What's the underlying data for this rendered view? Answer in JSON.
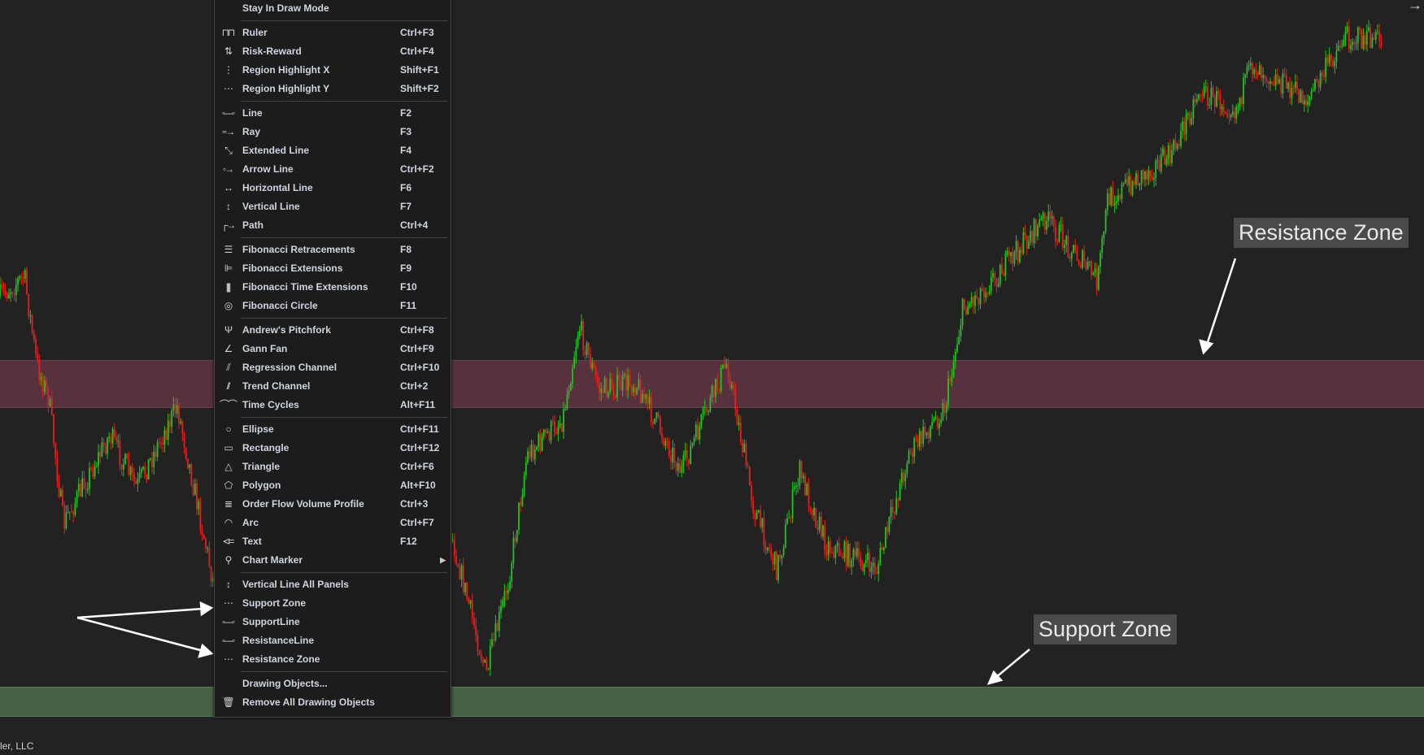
{
  "chart": {
    "up_color": "#22c322",
    "down_color": "#e81e1e",
    "resistance_band_color": "#58313f",
    "support_band_color": "#446146"
  },
  "annotations": {
    "resistance_label": "Resistance Zone",
    "support_label": "Support Zone"
  },
  "status_text": "ler, LLC",
  "corner_icon": "arrow-right-icon",
  "menu": {
    "groups": [
      [
        {
          "label": "Stay In Draw Mode",
          "shortcut": "",
          "icon": ""
        }
      ],
      [
        {
          "label": "Ruler",
          "shortcut": "Ctrl+F3",
          "icon": "ruler-icon",
          "glyph": "⊓⊓"
        },
        {
          "label": "Risk-Reward",
          "shortcut": "Ctrl+F4",
          "icon": "risk-reward-icon",
          "glyph": "⇅"
        },
        {
          "label": "Region Highlight X",
          "shortcut": "Shift+F1",
          "icon": "region-x-icon",
          "glyph": "⋮"
        },
        {
          "label": "Region Highlight Y",
          "shortcut": "Shift+F2",
          "icon": "region-y-icon",
          "glyph": "⋯"
        }
      ],
      [
        {
          "label": "Line",
          "shortcut": "F2",
          "icon": "line-icon",
          "glyph": "◦—◦"
        },
        {
          "label": "Ray",
          "shortcut": "F3",
          "icon": "ray-icon",
          "glyph": "◦◦→"
        },
        {
          "label": "Extended Line",
          "shortcut": "F4",
          "icon": "extended-line-icon",
          "glyph": "⤡"
        },
        {
          "label": "Arrow Line",
          "shortcut": "Ctrl+F2",
          "icon": "arrow-line-icon",
          "glyph": "◦→"
        },
        {
          "label": "Horizontal Line",
          "shortcut": "F6",
          "icon": "horizontal-line-icon",
          "glyph": "↔"
        },
        {
          "label": "Vertical Line",
          "shortcut": "F7",
          "icon": "vertical-line-icon",
          "glyph": "↕"
        },
        {
          "label": "Path",
          "shortcut": "Ctrl+4",
          "icon": "path-icon",
          "glyph": "┌→"
        }
      ],
      [
        {
          "label": "Fibonacci Retracements",
          "shortcut": "F8",
          "icon": "fib-retracement-icon",
          "glyph": "☰"
        },
        {
          "label": "Fibonacci Extensions",
          "shortcut": "F9",
          "icon": "fib-extension-icon",
          "glyph": "⊫"
        },
        {
          "label": "Fibonacci Time Extensions",
          "shortcut": "F10",
          "icon": "fib-time-icon",
          "glyph": "||||"
        },
        {
          "label": "Fibonacci Circle",
          "shortcut": "F11",
          "icon": "fib-circle-icon",
          "glyph": "◎"
        }
      ],
      [
        {
          "label": "Andrew's Pitchfork",
          "shortcut": "Ctrl+F8",
          "icon": "pitchfork-icon",
          "glyph": "Ψ"
        },
        {
          "label": "Gann Fan",
          "shortcut": "Ctrl+F9",
          "icon": "gann-fan-icon",
          "glyph": "∠"
        },
        {
          "label": "Regression Channel",
          "shortcut": "Ctrl+F10",
          "icon": "regression-channel-icon",
          "glyph": "⫽"
        },
        {
          "label": "Trend Channel",
          "shortcut": "Ctrl+2",
          "icon": "trend-channel-icon",
          "glyph": "//"
        },
        {
          "label": "Time Cycles",
          "shortcut": "Alt+F11",
          "icon": "time-cycles-icon",
          "glyph": "⌒⌒"
        }
      ],
      [
        {
          "label": "Ellipse",
          "shortcut": "Ctrl+F11",
          "icon": "ellipse-icon",
          "glyph": "○"
        },
        {
          "label": "Rectangle",
          "shortcut": "Ctrl+F12",
          "icon": "rectangle-icon",
          "glyph": "▭"
        },
        {
          "label": "Triangle",
          "shortcut": "Ctrl+F6",
          "icon": "triangle-icon",
          "glyph": "△"
        },
        {
          "label": "Polygon",
          "shortcut": "Alt+F10",
          "icon": "polygon-icon",
          "glyph": "⬠"
        },
        {
          "label": "Order Flow Volume Profile",
          "shortcut": "Ctrl+3",
          "icon": "volume-profile-icon",
          "glyph": "≣"
        },
        {
          "label": "Arc",
          "shortcut": "Ctrl+F7",
          "icon": "arc-icon",
          "glyph": "◠"
        },
        {
          "label": "Text",
          "shortcut": "F12",
          "icon": "text-icon",
          "glyph": "⊲="
        },
        {
          "label": "Chart Marker",
          "shortcut": "",
          "icon": "map-pin-icon",
          "glyph": "⚲",
          "submenu": true
        }
      ],
      [
        {
          "label": "Vertical Line All Panels",
          "shortcut": "",
          "icon": "vertical-line-icon",
          "glyph": "↕"
        },
        {
          "label": "Support Zone",
          "shortcut": "",
          "icon": "zone-icon",
          "glyph": "⋯"
        },
        {
          "label": "SupportLine",
          "shortcut": "",
          "icon": "line-icon",
          "glyph": "◦—◦"
        },
        {
          "label": "ResistanceLine",
          "shortcut": "",
          "icon": "line-icon",
          "glyph": "◦—◦"
        },
        {
          "label": "Resistance Zone",
          "shortcut": "",
          "icon": "zone-icon",
          "glyph": "⋯"
        }
      ],
      [
        {
          "label": "Drawing Objects...",
          "shortcut": "",
          "icon": ""
        },
        {
          "label": "Remove All Drawing Objects",
          "shortcut": "",
          "icon": "trash-icon",
          "glyph": "🗑"
        }
      ]
    ]
  }
}
